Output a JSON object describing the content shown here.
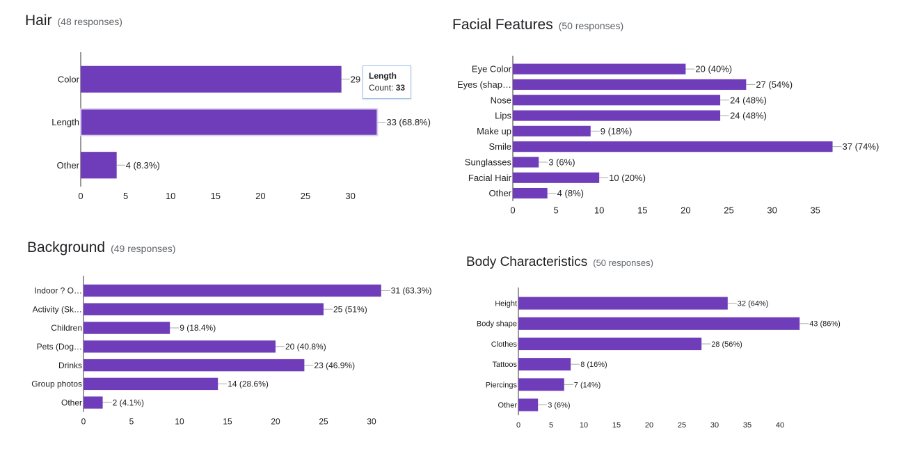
{
  "colors": {
    "bar": "#6f3dba",
    "axis": "#333333",
    "leader": "#aaaaaa",
    "text": "#202124",
    "muted": "#5f6368"
  },
  "chart_data": [
    {
      "id": "hair",
      "type": "bar",
      "orientation": "horizontal",
      "title": "Hair",
      "responses": "(48 responses)",
      "categories": [
        "Color",
        "Length",
        "Other"
      ],
      "values": [
        29,
        33,
        4
      ],
      "value_labels": [
        "29",
        "33 (68.8%)",
        "4 (8.3%)"
      ],
      "xticks": [
        0,
        5,
        10,
        15,
        20,
        25,
        30
      ],
      "xlim": [
        0,
        33
      ],
      "highlighted": "Length",
      "tooltip": {
        "title": "Length",
        "count_label": "Count:",
        "count": "33"
      }
    },
    {
      "id": "facial",
      "type": "bar",
      "orientation": "horizontal",
      "title": "Facial Features",
      "responses": "(50 responses)",
      "categories": [
        "Eye Color",
        "Eyes (shap…",
        "Nose",
        "Lips",
        "Make up",
        "Smile",
        "Sunglasses",
        "Facial Hair",
        "Other"
      ],
      "values": [
        20,
        27,
        24,
        24,
        9,
        37,
        3,
        10,
        4
      ],
      "value_labels": [
        "20 (40%)",
        "27 (54%)",
        "24 (48%)",
        "24 (48%)",
        "9 (18%)",
        "37 (74%)",
        "3 (6%)",
        "10 (20%)",
        "4 (8%)"
      ],
      "xticks": [
        0,
        5,
        10,
        15,
        20,
        25,
        30,
        35
      ],
      "xlim": [
        0,
        37
      ]
    },
    {
      "id": "background",
      "type": "bar",
      "orientation": "horizontal",
      "title": "Background",
      "responses": "(49 responses)",
      "categories": [
        "Indoor ? O…",
        "Activity (Sk…",
        "Children",
        "Pets (Dog…",
        "Drinks",
        "Group photos",
        "Other"
      ],
      "values": [
        31,
        25,
        9,
        20,
        23,
        14,
        2
      ],
      "value_labels": [
        "31 (63.3%)",
        "25 (51%)",
        "9 (18.4%)",
        "20 (40.8%)",
        "23 (46.9%)",
        "14 (28.6%)",
        "2 (4.1%)"
      ],
      "xticks": [
        0,
        5,
        10,
        15,
        20,
        25,
        30
      ],
      "xlim": [
        0,
        31
      ]
    },
    {
      "id": "body",
      "type": "bar",
      "orientation": "horizontal",
      "title": "Body Characteristics",
      "responses": "(50 responses)",
      "categories": [
        "Height",
        "Body shape",
        "Clothes",
        "Tattoos",
        "Piercings",
        "Other"
      ],
      "values": [
        32,
        43,
        28,
        8,
        7,
        3
      ],
      "value_labels": [
        "32 (64%)",
        "43 (86%)",
        "28 (56%)",
        "8 (16%)",
        "7 (14%)",
        "3 (6%)"
      ],
      "xticks": [
        0,
        5,
        10,
        15,
        20,
        25,
        30,
        35,
        40
      ],
      "xlim": [
        0,
        43
      ]
    }
  ]
}
